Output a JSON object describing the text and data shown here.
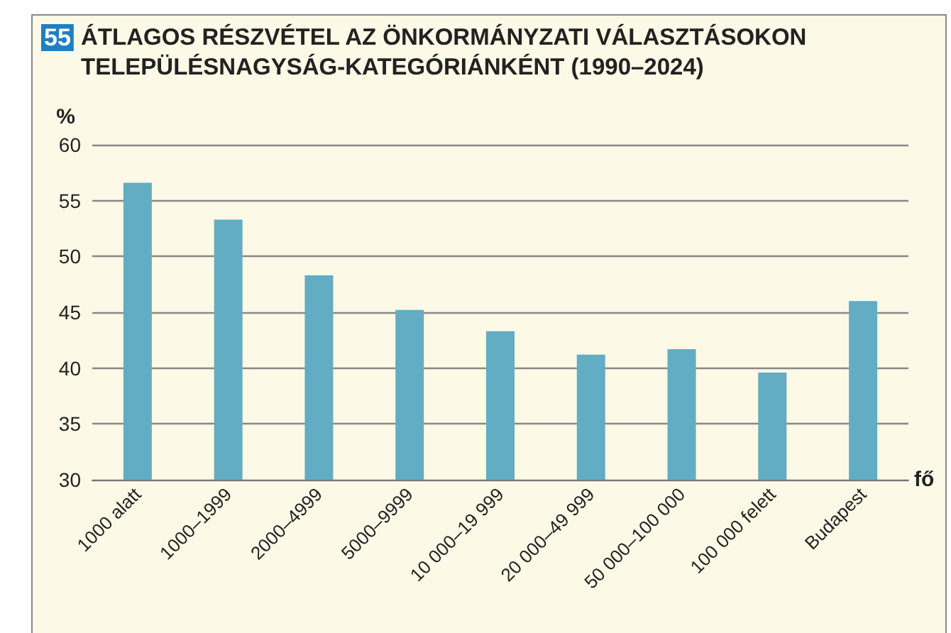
{
  "chart_data": {
    "type": "bar",
    "title": "ÁTLAGOS RÉSZVÉTEL AZ ÖNKORMÁNYZATI VÁLASZTÁSOKON TELEPÜLÉSNAGYSÁG-KATEGÓRIÁNKÉNT (1990–2024)",
    "annotations": [
      "55"
    ],
    "ylabel": "%",
    "xlabel": "fő",
    "categories": [
      "1000 alatt",
      "1000–1999",
      "2000–4999",
      "5000–9999",
      "10 000–19 999",
      "20 000–49 999",
      "50 000–100 000",
      "100 000 felett",
      "Budapest"
    ],
    "values": [
      56.6,
      53.3,
      48.3,
      45.2,
      43.3,
      41.2,
      41.7,
      39.6,
      46.0
    ],
    "color": "#62adc3",
    "ylim": [
      30,
      60
    ],
    "yticks": [
      30,
      35,
      40,
      45,
      50,
      55,
      60
    ],
    "grid": "y"
  }
}
